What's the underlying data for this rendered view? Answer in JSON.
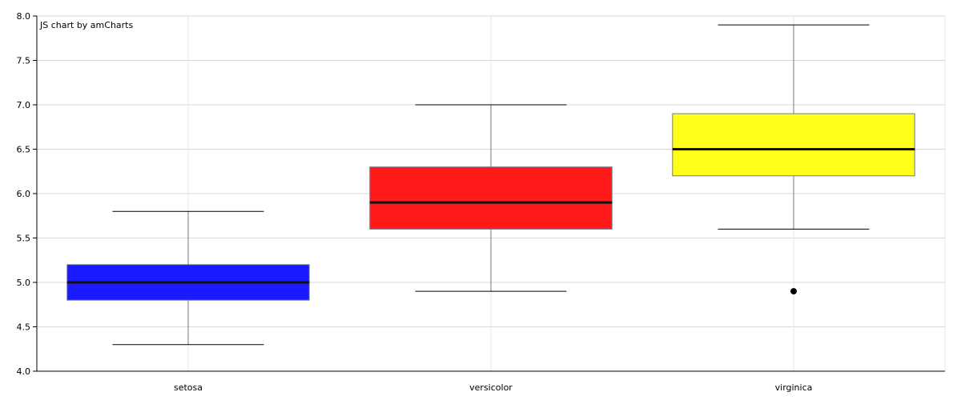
{
  "credit": "JS chart by amCharts",
  "chart_data": {
    "type": "box",
    "title": "",
    "xlabel": "",
    "ylabel": "",
    "ylim": [
      4.0,
      8.0
    ],
    "ytick_step": 0.5,
    "yticks": [
      "4.0",
      "4.5",
      "5.0",
      "5.5",
      "6.0",
      "6.5",
      "7.0",
      "7.5",
      "8.0"
    ],
    "grid": true,
    "legend": "none",
    "categories": [
      "setosa",
      "versicolor",
      "virginica"
    ],
    "boxes": [
      {
        "category": "setosa",
        "min": 4.3,
        "q1": 4.8,
        "median": 5.0,
        "q3": 5.2,
        "max": 5.8,
        "outliers": [],
        "color": "#1a1aff"
      },
      {
        "category": "versicolor",
        "min": 4.9,
        "q1": 5.6,
        "median": 5.9,
        "q3": 6.3,
        "max": 7.0,
        "outliers": [],
        "color": "#ff1a1a"
      },
      {
        "category": "virginica",
        "min": 5.6,
        "q1": 6.2,
        "median": 6.5,
        "q3": 6.9,
        "max": 7.9,
        "outliers": [
          4.9
        ],
        "color": "#ffff1a"
      }
    ]
  }
}
